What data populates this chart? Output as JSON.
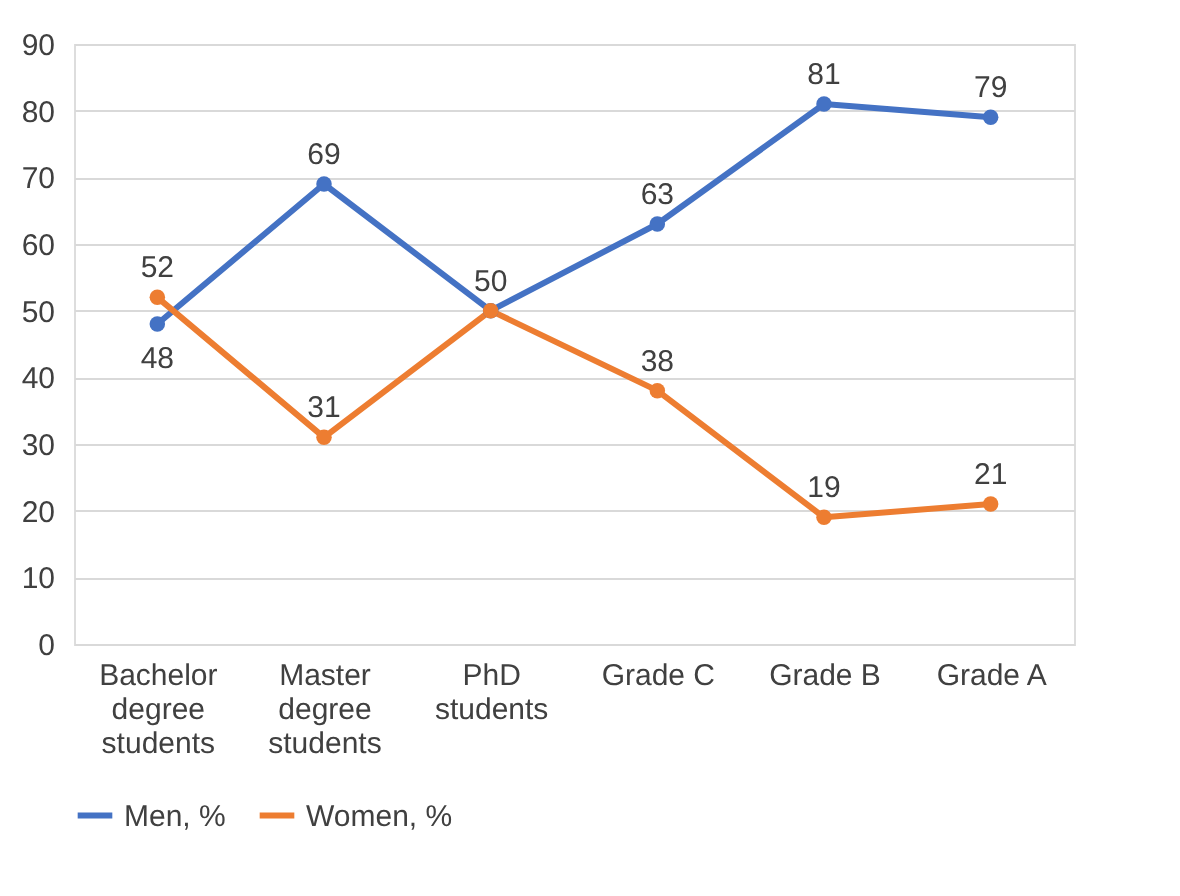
{
  "chart_data": {
    "type": "line",
    "categories": [
      "Bachelor degree students",
      "Master degree students",
      "PhD students",
      "Grade C",
      "Grade B",
      "Grade A"
    ],
    "series": [
      {
        "name": "Men, %",
        "color": "#4472c4",
        "values": [
          48,
          69,
          50,
          63,
          81,
          79
        ],
        "value_labels": [
          "48",
          "69",
          "50",
          "63",
          "81",
          "79"
        ]
      },
      {
        "name": "Women, %",
        "color": "#ed7d31",
        "values": [
          52,
          31,
          50,
          38,
          19,
          21
        ],
        "value_labels": [
          "52",
          "31",
          null,
          "38",
          "19",
          "21"
        ]
      }
    ],
    "ylim": [
      0,
      90
    ],
    "yticks": [
      0,
      10,
      20,
      30,
      40,
      50,
      60,
      70,
      80,
      90
    ],
    "grid": "y",
    "legend": "bottom",
    "marker": "circle",
    "line_style": "solid"
  }
}
